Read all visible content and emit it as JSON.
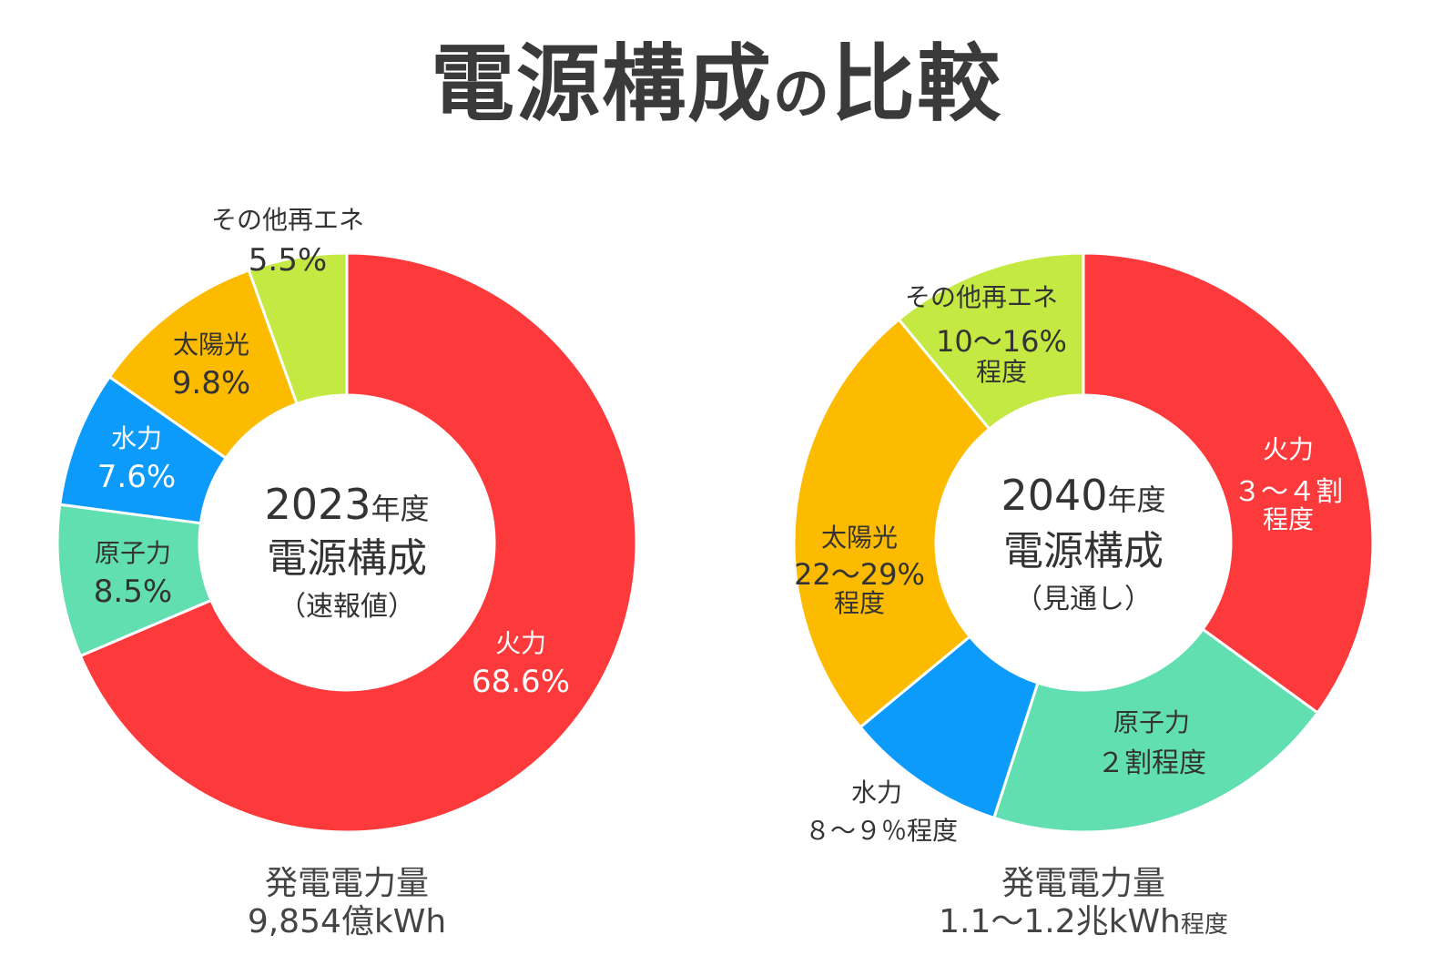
{
  "title": {
    "main": "電源構成",
    "particle": "の",
    "end": "比較"
  },
  "colors": {
    "thermal": "#fc3a3c",
    "nuclear": "#62dfb1",
    "hydro": "#0d9bfb",
    "solar": "#fdbb00",
    "other": "#c3e942"
  },
  "chart_data": [
    {
      "type": "pie",
      "center_label": {
        "year": "2023",
        "year_unit": "年度",
        "line2": "電源構成",
        "line3": "（速報値）"
      },
      "slices": [
        {
          "key": "thermal",
          "name": "火力",
          "value": 68.6,
          "label": "68.6%"
        },
        {
          "key": "nuclear",
          "name": "原子力",
          "value": 8.5,
          "label": "8.5%"
        },
        {
          "key": "hydro",
          "name": "水力",
          "value": 7.6,
          "label": "7.6%"
        },
        {
          "key": "solar",
          "name": "太陽光",
          "value": 9.8,
          "label": "9.8%"
        },
        {
          "key": "other",
          "name": "その他再エネ",
          "value": 5.5,
          "label": "5.5%"
        }
      ],
      "footer": {
        "line1": "発電電力量",
        "line2": "9,854億kWh",
        "line2_suffix": ""
      }
    },
    {
      "type": "pie",
      "center_label": {
        "year": "2040",
        "year_unit": "年度",
        "line2": "電源構成",
        "line3": "（見通し）"
      },
      "slices": [
        {
          "key": "thermal",
          "name": "火力",
          "value": 35,
          "label": "３～４割",
          "label2": "程度"
        },
        {
          "key": "nuclear",
          "name": "原子力",
          "value": 20,
          "label": "２割程度",
          "label2": ""
        },
        {
          "key": "hydro",
          "name": "水力",
          "value": 9,
          "label": "８～９％程度",
          "label2": ""
        },
        {
          "key": "solar",
          "name": "太陽光",
          "value": 25,
          "label": "22～29%",
          "label2": "程度"
        },
        {
          "key": "other",
          "name": "その他再エネ",
          "value": 11,
          "label": "10～16%",
          "label2": "程度"
        }
      ],
      "footer": {
        "line1": "発電電力量",
        "line2": "1.1～1.2兆kWh",
        "line2_suffix": "程度"
      }
    }
  ]
}
